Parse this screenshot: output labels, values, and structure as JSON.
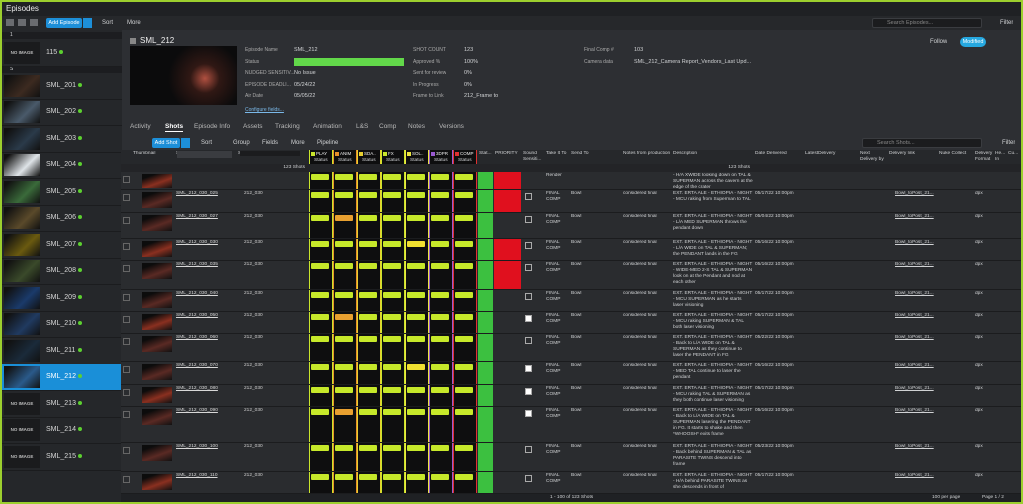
{
  "header": {
    "title": "Episodes",
    "add_button": "Add Episode",
    "sort": "Sort",
    "more": "More",
    "search_placeholder": "Search Episodes...",
    "filter": "Filter"
  },
  "sidebar": {
    "groups": [
      "1",
      "S"
    ],
    "episodes": [
      {
        "name": "115",
        "thumb": "NO IMAGE"
      },
      {
        "name": "SML_201"
      },
      {
        "name": "SML_202"
      },
      {
        "name": "SML_203"
      },
      {
        "name": "SML_204"
      },
      {
        "name": "SML_205"
      },
      {
        "name": "SML_206"
      },
      {
        "name": "SML_207"
      },
      {
        "name": "SML_208"
      },
      {
        "name": "SML_209"
      },
      {
        "name": "SML_210"
      },
      {
        "name": "SML_211"
      },
      {
        "name": "SML_212"
      },
      {
        "name": "SML_213",
        "thumb": "NO IMAGE"
      },
      {
        "name": "SML_214",
        "thumb": "NO IMAGE"
      },
      {
        "name": "SML_215",
        "thumb": "NO IMAGE"
      }
    ]
  },
  "detail": {
    "title": "SML_212",
    "follow": "Follow",
    "badge": "Modified",
    "configure": "Configure fields...",
    "fields": [
      [
        {
          "label": "Episode Name",
          "value": "SML_212"
        },
        {
          "label": "Status"
        },
        {
          "label": "NUDGED SENSITIV...",
          "value": "No Issue"
        },
        {
          "label": "EPISODE DEADLI...",
          "value": "05/24/22"
        },
        {
          "label": "Air Date",
          "value": "05/05/22"
        }
      ],
      [
        {
          "label": "SHOT COUNT",
          "value": "123"
        },
        {
          "label": "Approved %",
          "value": "100%"
        },
        {
          "label": "Sent for review",
          "value": "0%"
        },
        {
          "label": "In Progress",
          "value": "0%"
        },
        {
          "label": "Frame to Link",
          "value": "212_Frame to"
        }
      ],
      [
        {
          "label": "Final Comp #",
          "value": "103"
        },
        {
          "label": "Camera data",
          "value": "SML_212_Camera Report_Vendors_Last Upd..."
        }
      ]
    ]
  },
  "tabs": [
    "Activity",
    "Shots",
    "Episode Info",
    "Assets",
    "Tracking",
    "Animation",
    "L&S",
    "Comp",
    "Notes",
    "Versions"
  ],
  "shots_toolbar": {
    "add": "Add Shot",
    "sort": "Sort",
    "group": "Group",
    "fields": "Fields",
    "more": "More",
    "pipeline": "Pipeline",
    "search": "Search Shots...",
    "filter": "Filter"
  },
  "table": {
    "status_label": "Status",
    "summary": "123 Shots",
    "columns": [
      "Thumbnail",
      "Shot Code",
      "Sequence",
      "Stat...",
      "PRIORITY",
      "Sound Sensiti...",
      "Take It To",
      "Send To",
      "Notes from production",
      "Description",
      "Date Delivered",
      "LatestDelivery",
      "Next Delivery by",
      "Delivery link",
      "Nuke Collect",
      "Delivery Format",
      "He... In",
      "Cu..."
    ],
    "steps": [
      {
        "name": "PLAY",
        "color": "#c9e52c"
      },
      {
        "name": "ANIM",
        "color": "#e8902a"
      },
      {
        "name": "SDA..",
        "color": "#e8d030"
      },
      {
        "name": "FX",
        "color": "#c9e52c"
      },
      {
        "name": "SOL..",
        "color": "#ece640"
      },
      {
        "name": "3DPR",
        "color": "#9a5ad0"
      },
      {
        "name": "COMP",
        "color": "#e03030"
      }
    ],
    "rows": [
      {
        "take_it_to": "Render",
        "description": "- H/A XWIDE looking down on TAL & SUPERMAN across the cavern at the edge of the crater"
      },
      {
        "code": "SML_212_030_025",
        "sequence": "212_030",
        "take_it_to": "FINAL COMP",
        "send_to": "Bowl",
        "notes": "considered final",
        "description": "EXT. ERTA ALE - ETHIOPIA - NIGHT - MCU raking from Superman to TAL",
        "date": "05/17/22 10:00pm",
        "link": "Bowl_toPost_21...",
        "format": "dpx"
      },
      {
        "code": "SML_212_030_027",
        "sequence": "212_030",
        "take_it_to": "FINAL COMP",
        "send_to": "Bowl",
        "notes": "considered final",
        "description": "EXT. ERTA ALE - ETHIOPIA - NIGHT - L/A MED SUPERMAN throws the pendant down",
        "date": "05/04/22 10:00pm",
        "link": "Bowl_toPost_21...",
        "format": "dpx"
      },
      {
        "code": "SML_212_030_030",
        "sequence": "212_030",
        "take_it_to": "FINAL COMP",
        "send_to": "Bowl",
        "notes": "considered final",
        "description": "EXT. ERTA ALE - ETHIOPIA - NIGHT - L/A WIDE on TAL & SUPERMAN; the PENDANT lands in the FG",
        "date": "05/16/22 10:00pm",
        "link": "Bowl_toPost_21...",
        "format": "dpx"
      },
      {
        "code": "SML_212_030_035",
        "sequence": "212_030",
        "take_it_to": "FINAL COMP",
        "send_to": "Bowl",
        "notes": "considered final",
        "description": "EXT. ERTA ALE - ETHIOPIA - NIGHT - WIDE-MED 2-S TAL & SUPERMAN look on at the Pendant and nod at each other",
        "date": "05/16/22 10:00pm",
        "link": "Bowl_toPost_21...",
        "format": "dpx"
      },
      {
        "code": "SML_212_030_040",
        "sequence": "212_030",
        "take_it_to": "FINAL COMP",
        "send_to": "Bowl",
        "notes": "considered final",
        "description": "EXT. ERTA ALE - ETHIOPIA - NIGHT - MCU SUPERMAN as he starts laser visioning",
        "date": "05/17/22 10:00pm",
        "link": "Bowl_toPost_21...",
        "format": "dpx"
      },
      {
        "code": "SML_212_030_050",
        "sequence": "212_030",
        "take_it_to": "FINAL COMP",
        "send_to": "Bowl",
        "notes": "considered final",
        "description": "EXT. ERTA ALE - ETHIOPIA - NIGHT - MCU raking SUPERMAN & TAL both laser visioning",
        "date": "05/17/22 10:00pm",
        "link": "Bowl_toPost_21...",
        "format": "dpx"
      },
      {
        "code": "SML_212_030_060",
        "sequence": "212_030",
        "take_it_to": "FINAL COMP",
        "send_to": "Bowl",
        "notes": "considered final",
        "description": "EXT. ERTA ALE - ETHIOPIA - NIGHT - Back to L/A WIDE on TAL & SUPERMAN as they continue to laser the PENDANT in FG",
        "date": "05/22/22 10:00pm",
        "link": "Bowl_toPost_21...",
        "format": "dpx"
      },
      {
        "code": "SML_212_030_070",
        "sequence": "212_030",
        "take_it_to": "FINAL COMP",
        "send_to": "Bowl",
        "notes": "considered final",
        "description": "EXT. ERTA ALE - ETHIOPIA - NIGHT - MED TAL continue to laser the pendant",
        "date": "05/16/22 10:00pm",
        "link": "Bowl_toPost_21...",
        "format": "dpx"
      },
      {
        "code": "SML_212_030_080",
        "sequence": "212_030",
        "take_it_to": "FINAL COMP",
        "send_to": "Bowl",
        "notes": "considered final",
        "description": "EXT. ERTA ALE - ETHIOPIA - NIGHT - MCU raking TAL & SUPERMAN as they both continue laser visioning",
        "date": "05/17/22 10:00pm",
        "link": "Bowl_toPost_21...",
        "format": "dpx"
      },
      {
        "code": "SML_212_030_090",
        "sequence": "212_030",
        "take_it_to": "FINAL COMP",
        "send_to": "Bowl",
        "notes": "considered final",
        "description": "EXT. ERTA ALE - ETHIOPIA - NIGHT - Back to L/A WIDE on TAL & SUPERMAN lasering the PENDANT in FG. It starts to shake and then *WHOOSH* exits frame",
        "date": "05/16/22 10:00pm",
        "link": "Bowl_toPost_21...",
        "format": "dpx"
      },
      {
        "code": "SML_212_030_100",
        "sequence": "212_030",
        "take_it_to": "FINAL COMP",
        "send_to": "Bowl",
        "notes": "considered final",
        "description": "EXT. ERTA ALE - ETHIOPIA - NIGHT - Back behind SUPERMAN & TAL as PARASITE TWINS descend into frame",
        "date": "05/23/22 10:00pm",
        "link": "Bowl_toPost_21...",
        "format": "dpx"
      },
      {
        "code": "SML_212_030_110",
        "sequence": "212_030",
        "take_it_to": "FINAL COMP",
        "send_to": "Bowl",
        "notes": "considered final",
        "description": "EXT. ERTA ALE - ETHIOPIA - NIGHT - H/A behind PARASITE TWINS as she descends in front of",
        "date": "05/17/22 10:00pm",
        "link": "Bowl_toPost_21...",
        "format": "dpx"
      }
    ]
  },
  "footer": {
    "range": "1 - 100 of 123 Shots",
    "per_page": "100 per page",
    "page": "Page 1 / 2"
  }
}
